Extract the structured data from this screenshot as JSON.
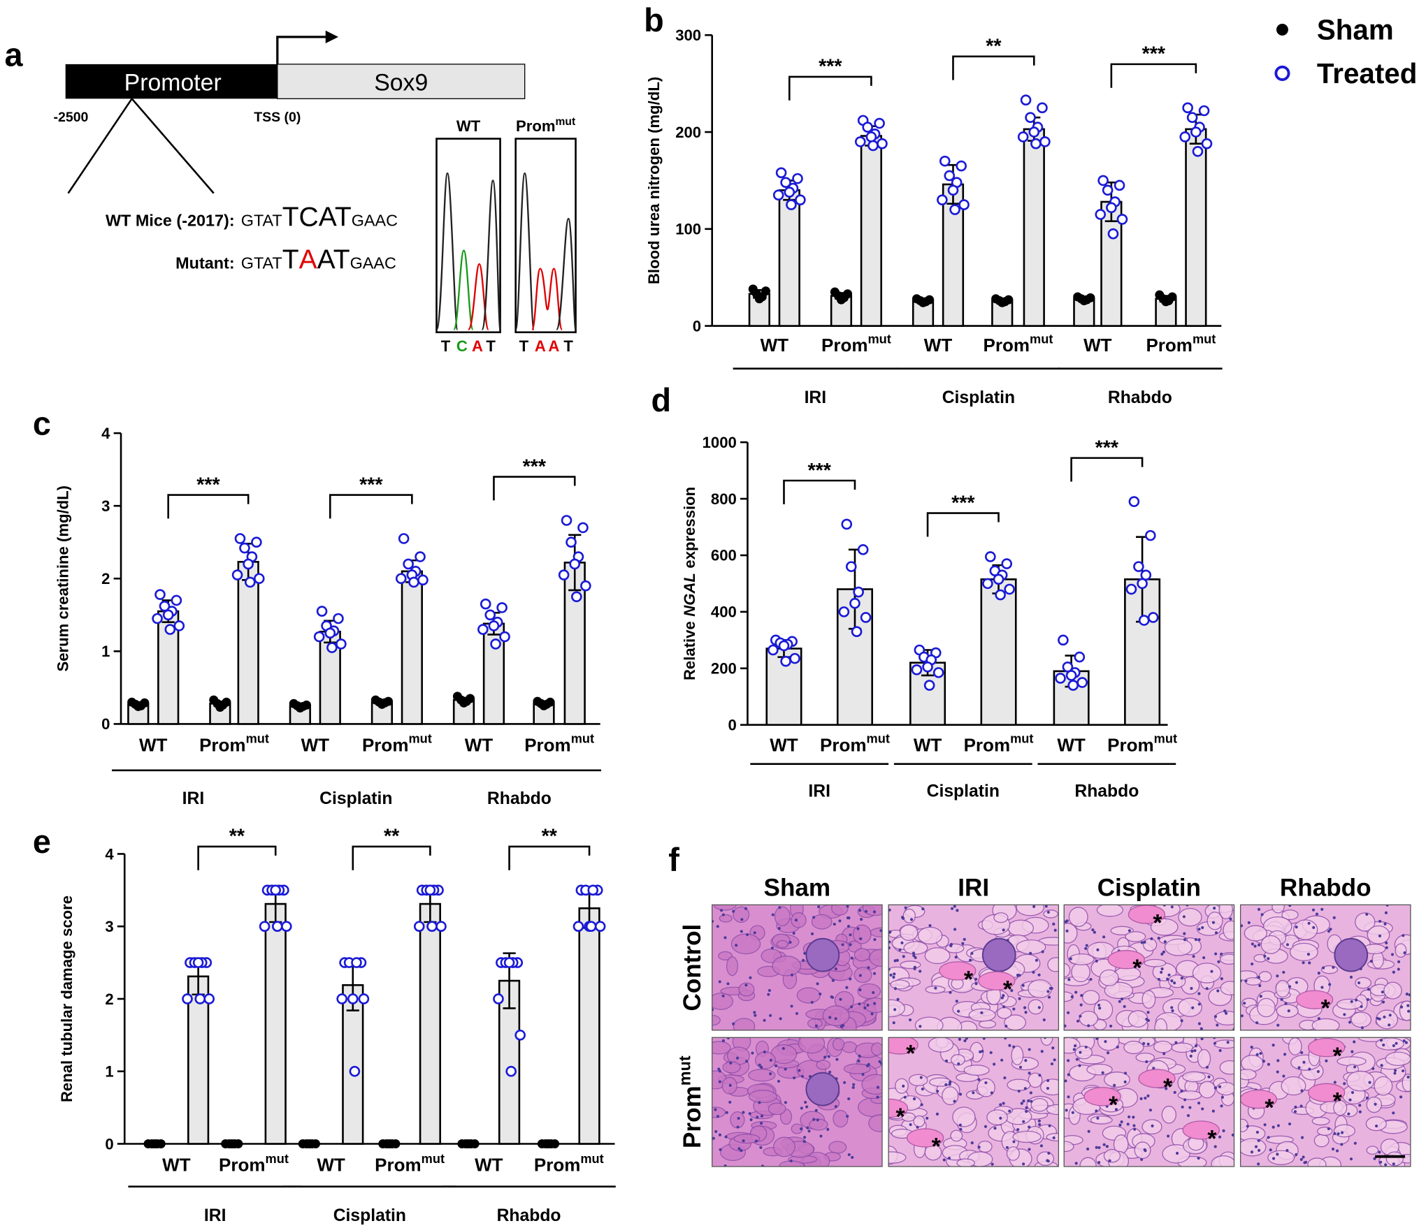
{
  "panel_a": {
    "letter": "a",
    "promoter": "Promoter",
    "gene": "Sox9",
    "start": "-2500",
    "tss": "TSS (0)",
    "wt_label": "WT Mice (-2017):",
    "wt_seq": [
      "GTAT",
      "TCAT",
      "GAAC"
    ],
    "mut_label": "Mutant:",
    "mut_seq": [
      "GTAT",
      "T",
      "A",
      "AT",
      "GAAC"
    ],
    "chromatograms": [
      {
        "title": "WT",
        "bases": [
          "T",
          "C",
          "A",
          "T"
        ]
      },
      {
        "title": "Prom",
        "title_sup": "mut",
        "bases": [
          "T",
          "A",
          "A",
          "T"
        ]
      }
    ]
  },
  "chart_data": [
    {
      "type": "bar",
      "panel": "b",
      "y_label": "Blood urea nitrogen (mg/dL)",
      "ylim": [
        0,
        300
      ],
      "yticks": [
        0,
        100,
        200,
        300
      ],
      "categories": [
        "WT",
        "Prom",
        "WT",
        "Prom",
        "WT",
        "Prom"
      ],
      "category_sup": [
        null,
        "mut",
        null,
        "mut",
        null,
        "mut"
      ],
      "groups": [
        "IRI",
        "Cisplatin",
        "Rhabdo"
      ],
      "significance": [
        "***",
        "**",
        "***"
      ],
      "series": [
        {
          "name": "Sham",
          "color": "#000000",
          "values": [
            33,
            31,
            26,
            26,
            28,
            28
          ],
          "errors": [
            4,
            3,
            2,
            2,
            2,
            3
          ],
          "points": [
            [
              38,
              36,
              33,
              30,
              28
            ],
            [
              35,
              33,
              31,
              29,
              27
            ],
            [
              28,
              27,
              26,
              25,
              24
            ],
            [
              28,
              27,
              26,
              25,
              24
            ],
            [
              30,
              29,
              28,
              27,
              26
            ],
            [
              32,
              30,
              28,
              26,
              25
            ]
          ]
        },
        {
          "name": "Treated",
          "color": "#1a1ad6",
          "values": [
            140,
            196,
            146,
            203,
            128,
            203
          ],
          "errors": [
            10,
            10,
            20,
            12,
            20,
            15
          ],
          "points": [
            [
              158,
              152,
              148,
              142,
              138,
              135,
              130,
              125
            ],
            [
              212,
              209,
              205,
              198,
              195,
              190,
              188,
              186
            ],
            [
              170,
              165,
              155,
              148,
              140,
              130,
              125,
              120
            ],
            [
              233,
              225,
              215,
              205,
              200,
              195,
              190,
              188
            ],
            [
              150,
              145,
              140,
              128,
              122,
              115,
              110,
              95
            ],
            [
              225,
              222,
              215,
              205,
              200,
              195,
              188,
              180
            ]
          ]
        }
      ]
    },
    {
      "type": "bar",
      "panel": "c",
      "y_label": "Serum creatinine (mg/dL)",
      "ylim": [
        0,
        4
      ],
      "yticks": [
        0,
        1,
        2,
        3,
        4
      ],
      "categories": [
        "WT",
        "Prom",
        "WT",
        "Prom",
        "WT",
        "Prom"
      ],
      "category_sup": [
        null,
        "mut",
        null,
        "mut",
        null,
        "mut"
      ],
      "groups": [
        "IRI",
        "Cisplatin",
        "Rhabdo"
      ],
      "significance": [
        "***",
        "***",
        "***"
      ],
      "series": [
        {
          "color": "#000000",
          "values": [
            0.27,
            0.28,
            0.25,
            0.3,
            0.33,
            0.28
          ],
          "errors": [
            0.03,
            0.03,
            0.03,
            0.03,
            0.03,
            0.03
          ],
          "points": [
            [
              0.3,
              0.29,
              0.27,
              0.25,
              0.24
            ],
            [
              0.33,
              0.3,
              0.28,
              0.26,
              0.23
            ],
            [
              0.28,
              0.26,
              0.25,
              0.24,
              0.22
            ],
            [
              0.33,
              0.31,
              0.3,
              0.29,
              0.27
            ],
            [
              0.38,
              0.35,
              0.33,
              0.31,
              0.29
            ],
            [
              0.31,
              0.3,
              0.28,
              0.27,
              0.25
            ]
          ]
        },
        {
          "color": "#1a1ad6",
          "values": [
            1.55,
            2.23,
            1.27,
            2.1,
            1.38,
            2.22
          ],
          "errors": [
            0.15,
            0.25,
            0.15,
            0.15,
            0.15,
            0.38
          ],
          "points": [
            [
              1.78,
              1.7,
              1.62,
              1.55,
              1.5,
              1.45,
              1.35,
              1.3
            ],
            [
              2.55,
              2.5,
              2.42,
              2.3,
              2.2,
              2.05,
              2.0,
              1.95
            ],
            [
              1.55,
              1.45,
              1.35,
              1.28,
              1.25,
              1.2,
              1.1,
              1.05
            ],
            [
              2.55,
              2.3,
              2.2,
              2.1,
              2.05,
              2.0,
              1.98,
              1.95
            ],
            [
              1.65,
              1.6,
              1.5,
              1.4,
              1.35,
              1.3,
              1.2,
              1.1
            ],
            [
              2.8,
              2.7,
              2.5,
              2.3,
              2.2,
              2.05,
              1.9,
              1.75
            ]
          ]
        }
      ]
    },
    {
      "type": "bar",
      "panel": "d",
      "y_label": [
        "Relative",
        "NGAL",
        "expression"
      ],
      "ylim": [
        0,
        1000
      ],
      "yticks": [
        0,
        200,
        400,
        600,
        800,
        1000
      ],
      "categories": [
        "WT",
        "Prom",
        "WT",
        "Prom",
        "WT",
        "Prom"
      ],
      "category_sup": [
        null,
        "mut",
        null,
        "mut",
        null,
        "mut"
      ],
      "groups": [
        "IRI",
        "Cisplatin",
        "Rhabdo"
      ],
      "significance": [
        "***",
        "***",
        "***"
      ],
      "series": [
        {
          "color": "#1a1ad6",
          "values": [
            270,
            480,
            220,
            515,
            190,
            515
          ],
          "errors": [
            30,
            140,
            45,
            50,
            55,
            150
          ],
          "points": [
            [
              300,
              295,
              290,
              285,
              280,
              265,
              235,
              225
            ],
            [
              710,
              620,
              560,
              470,
              430,
              400,
              380,
              330
            ],
            [
              265,
              255,
              240,
              230,
              205,
              195,
              185,
              140
            ],
            [
              595,
              570,
              545,
              530,
              515,
              500,
              480,
              460
            ],
            [
              300,
              240,
              205,
              185,
              175,
              165,
              150,
              140
            ],
            [
              790,
              670,
              560,
              530,
              500,
              480,
              380,
              370
            ]
          ]
        }
      ]
    },
    {
      "type": "bar",
      "panel": "e",
      "y_label": "Renal tubular damage score",
      "ylim": [
        0,
        4
      ],
      "yticks": [
        0,
        1,
        2,
        3,
        4
      ],
      "categories": [
        "WT",
        "Prom",
        "WT",
        "Prom",
        "WT",
        "Prom"
      ],
      "category_sup": [
        null,
        "mut",
        null,
        "mut",
        null,
        "mut"
      ],
      "groups": [
        "IRI",
        "Cisplatin",
        "Rhabdo"
      ],
      "significance": [
        "**",
        "**",
        "**"
      ],
      "series": [
        {
          "color": "#000000",
          "values": [
            0,
            0,
            0,
            0,
            0,
            0
          ],
          "errors": [
            0,
            0,
            0,
            0,
            0,
            0
          ],
          "points": [
            [
              0,
              0,
              0,
              0,
              0
            ],
            [
              0,
              0,
              0,
              0,
              0
            ],
            [
              0,
              0,
              0,
              0,
              0
            ],
            [
              0,
              0,
              0,
              0,
              0
            ],
            [
              0,
              0,
              0,
              0,
              0
            ],
            [
              0,
              0,
              0,
              0,
              0
            ]
          ]
        },
        {
          "color": "#1a1ad6",
          "values": [
            2.31,
            3.31,
            2.19,
            3.31,
            2.25,
            3.25
          ],
          "errors": [
            0.25,
            0.25,
            0.35,
            0.25,
            0.38,
            0.27
          ],
          "points": [
            [
              2.5,
              2.5,
              2.5,
              2.5,
              2.5,
              2.0,
              2.0,
              2.0
            ],
            [
              3.5,
              3.5,
              3.5,
              3.5,
              3.5,
              3.0,
              3.0,
              3.0
            ],
            [
              2.5,
              2.5,
              2.5,
              2.5,
              2.0,
              2.0,
              2.0,
              1.0
            ],
            [
              3.5,
              3.5,
              3.5,
              3.5,
              3.5,
              3.0,
              3.0,
              3.0
            ],
            [
              2.5,
              2.5,
              2.5,
              2.5,
              2.5,
              2.0,
              1.5,
              1.0
            ],
            [
              3.5,
              3.5,
              3.5,
              3.5,
              3.0,
              3.0,
              3.0,
              3.0
            ]
          ]
        }
      ]
    }
  ],
  "panel_f": {
    "letter": "f",
    "columns": [
      "Sham",
      "IRI",
      "Cisplatin",
      "Rhabdo"
    ],
    "rows": [
      {
        "label": "Control"
      },
      {
        "label": "Prom",
        "sup": "mut"
      }
    ],
    "marker": "*"
  }
}
